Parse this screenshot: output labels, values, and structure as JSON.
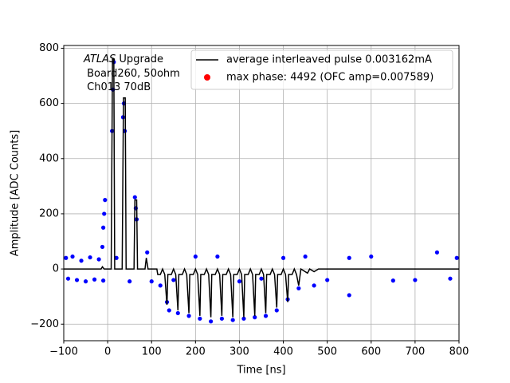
{
  "chart_data": {
    "type": "line",
    "xlabel": "Time [ns]",
    "ylabel": "Amplitude [ADC Counts]",
    "annotation": {
      "emphasis": "ATLAS",
      "lines": [
        "Upgrade",
        "Board260, 50ohm",
        "Ch013 70dB"
      ]
    },
    "xlim": [
      -100,
      800
    ],
    "ylim": [
      -260,
      810
    ],
    "xticks": [
      {
        "value": -100,
        "label": "−100"
      },
      0,
      100,
      200,
      300,
      400,
      500,
      600,
      700,
      800
    ],
    "yticks": [
      {
        "value": -200,
        "label": "−200"
      },
      0,
      200,
      400,
      600,
      800
    ],
    "grid": true,
    "legend": "upper right",
    "samples": {
      "color": "#0000ff",
      "x": [
        -95,
        -90,
        -80,
        -70,
        -60,
        -50,
        -40,
        -30,
        -20,
        -10,
        -12,
        -10,
        -8,
        -6,
        10,
        12,
        14,
        20,
        35,
        37,
        39,
        50,
        62,
        64,
        66,
        90,
        100,
        120,
        135,
        140,
        150,
        160,
        185,
        200,
        210,
        235,
        250,
        260,
        285,
        300,
        310,
        335,
        350,
        360,
        385,
        400,
        410,
        435,
        450,
        470,
        500,
        550,
        550,
        600,
        650,
        700,
        750,
        780,
        795
      ],
      "values": [
        40,
        -35,
        45,
        -40,
        30,
        -45,
        42,
        -38,
        35,
        -42,
        80,
        150,
        200,
        250,
        500,
        650,
        750,
        40,
        550,
        600,
        500,
        -45,
        260,
        220,
        180,
        60,
        -45,
        -60,
        -120,
        -150,
        -40,
        -160,
        -170,
        45,
        -180,
        -190,
        45,
        -180,
        -185,
        -45,
        -180,
        -175,
        -35,
        -170,
        -150,
        40,
        -110,
        -70,
        45,
        -60,
        -40,
        -95,
        40,
        45,
        -42,
        -40,
        60,
        -35,
        40
      ]
    },
    "series": [
      {
        "name": "average interleaved pulse 0.003162mA",
        "type": "line",
        "color": "#000000",
        "x": [
          -100,
          -15,
          -12,
          -8,
          8,
          11,
          14,
          16,
          33,
          36,
          40,
          42,
          60,
          62,
          66,
          68,
          85,
          88,
          92,
          112,
          114,
          120,
          125,
          130,
          135,
          137,
          145,
          150,
          155,
          160,
          162,
          170,
          175,
          180,
          185,
          187,
          195,
          200,
          205,
          210,
          212,
          220,
          225,
          230,
          235,
          237,
          245,
          250,
          255,
          260,
          262,
          270,
          275,
          280,
          285,
          287,
          295,
          300,
          305,
          310,
          312,
          320,
          325,
          330,
          335,
          337,
          345,
          350,
          355,
          360,
          362,
          370,
          375,
          380,
          385,
          387,
          395,
          400,
          405,
          410,
          412,
          420,
          425,
          430,
          435,
          440,
          455,
          460,
          470,
          480,
          800
        ],
        "values": [
          0,
          0,
          8,
          0,
          0,
          760,
          760,
          0,
          0,
          620,
          620,
          0,
          0,
          250,
          250,
          0,
          0,
          40,
          0,
          0,
          -20,
          -20,
          0,
          -20,
          -130,
          -20,
          -20,
          0,
          -20,
          -150,
          -20,
          -20,
          0,
          -20,
          -160,
          -20,
          -20,
          0,
          -20,
          -170,
          -20,
          -20,
          0,
          -20,
          -175,
          -20,
          -20,
          0,
          -20,
          -170,
          -20,
          -20,
          0,
          -20,
          -175,
          -20,
          -20,
          0,
          -20,
          -175,
          -20,
          -20,
          0,
          -20,
          -170,
          -20,
          -20,
          0,
          -20,
          -160,
          -20,
          -20,
          0,
          -20,
          -140,
          -20,
          -20,
          0,
          -20,
          -120,
          -20,
          -20,
          0,
          -20,
          -60,
          0,
          -15,
          0,
          -10,
          0,
          0
        ]
      },
      {
        "name": "max phase: 4492 (OFC amp=0.007589)",
        "type": "scatter",
        "color": "#ff0000",
        "x": [],
        "values": []
      }
    ]
  }
}
